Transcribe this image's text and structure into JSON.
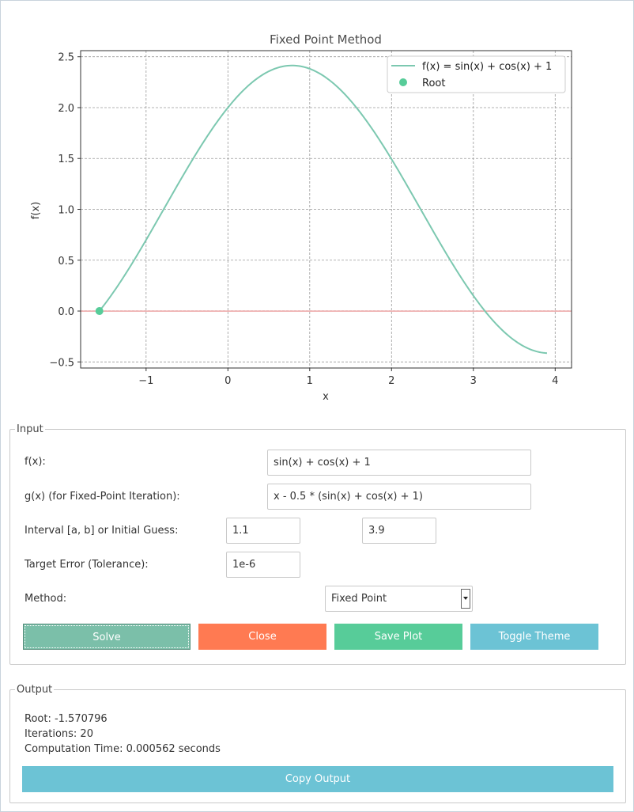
{
  "colors": {
    "curve": "#7cc8b0",
    "root_marker": "#57cc99",
    "zero_line": "#e06666",
    "solve": "#7bbfa9",
    "close": "#ff7a52",
    "save_plot": "#57cc99",
    "toggle_theme": "#6cc3d5",
    "copy_output": "#6cc3d5"
  },
  "chart_data": {
    "type": "line",
    "title": "Fixed Point Method",
    "xlabel": "x",
    "ylabel": "f(x)",
    "xlim": [
      -1.8,
      4.2
    ],
    "ylim": [
      -0.56,
      2.56
    ],
    "xticks": [
      -1,
      0,
      1,
      2,
      3,
      4
    ],
    "yticks": [
      -0.5,
      0.0,
      0.5,
      1.0,
      1.5,
      2.0,
      2.5
    ],
    "xtick_labels": [
      "−1",
      "0",
      "1",
      "2",
      "3",
      "4"
    ],
    "ytick_labels": [
      "−0.5",
      "0.0",
      "0.5",
      "1.0",
      "1.5",
      "2.0",
      "2.5"
    ],
    "grid": true,
    "legend_position": "top-right",
    "series": [
      {
        "name": "f(x) = sin(x) + cos(x) + 1",
        "function": "sin(x) + cos(x) + 1",
        "x_range": [
          -1.570796,
          3.9
        ]
      }
    ],
    "points": [
      {
        "name": "Root",
        "x": -1.570796,
        "y": 0.0
      }
    ],
    "reference_line": {
      "y": 0.0
    }
  },
  "input": {
    "title": "Input",
    "fx_label": "f(x):",
    "fx_value": "sin(x) + cos(x) + 1",
    "gx_label": "g(x) (for Fixed-Point Iteration):",
    "gx_value": "x - 0.5 * (sin(x) + cos(x) + 1)",
    "interval_label": "Interval [a, b] or Initial Guess:",
    "interval_a": "1.1",
    "interval_b": "3.9",
    "tol_label": "Target Error (Tolerance):",
    "tol_value": "1e-6",
    "method_label": "Method:",
    "method_value": "Fixed Point"
  },
  "buttons": {
    "solve": "Solve",
    "close": "Close",
    "save_plot": "Save Plot",
    "toggle_theme": "Toggle Theme"
  },
  "output": {
    "title": "Output",
    "root": "Root: -1.570796",
    "iterations": "Iterations: 20",
    "time": "Computation Time: 0.000562 seconds",
    "copy_button": "Copy Output"
  }
}
